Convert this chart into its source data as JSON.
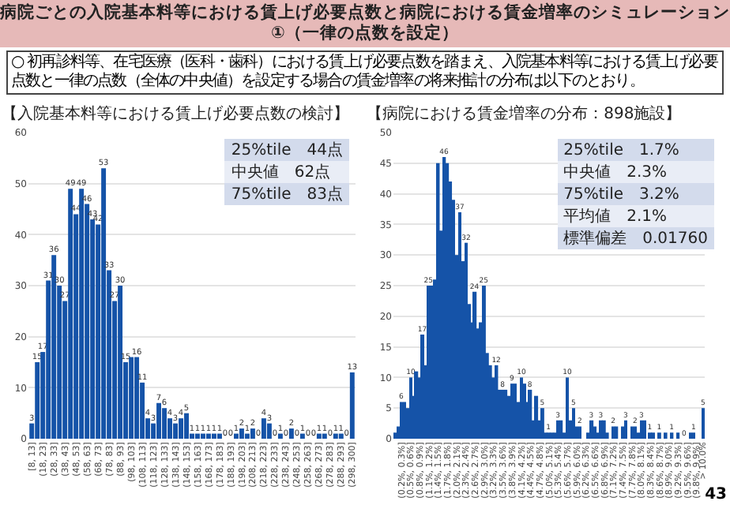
{
  "chart_data": [
    {
      "type": "bar",
      "title": "【入院基本料等における賃上げ必要点数の検討】",
      "annotations": [
        "病院ごとの入院基本料等における賃上げ必要点数と病院における賃金増率のシミュレーション ①（一律の点数を設定）",
        "○ 初再診料等、在宅医療（医科・歯科）における賃上げ必要点数を踏まえ、入院基本料等における賃上げ必要点数と一律の点数（全体の中央値）を設定する場合の賃金増率の将来推計の分布は以下のとおり。",
        "43",
        "25%tile　44点",
        "中央値　62点",
        "75%tile　83点"
      ],
      "categories": [
        "[8, 13]",
        null,
        "(18, 23]",
        null,
        "(28, 33]",
        null,
        "(38, 43]",
        null,
        "(48, 53]",
        null,
        "(58, 63]",
        null,
        "(68, 73]",
        null,
        "(78, 83]",
        null,
        "(88, 93]",
        null,
        "(98, 103]",
        null,
        "(108, 113]",
        null,
        "(118, 123]",
        null,
        "(128, 133]",
        null,
        "(138, 143]",
        null,
        "(148, 153]",
        null,
        "(158, 163]",
        null,
        "(168, 173]",
        null,
        "(178, 183]",
        null,
        "(188, 193]",
        null,
        "(198, 203]",
        null,
        "(208, 213]",
        null,
        "(218, 223]",
        null,
        "(228, 233]",
        null,
        "(238, 243]",
        null,
        "(248, 253]",
        null,
        "(258, 263]",
        null,
        "(268, 273]",
        null,
        "(278, 283]",
        null,
        "(288, 293]",
        null,
        "(298, 300]"
      ],
      "values": [
        3,
        15,
        17,
        31,
        36,
        30,
        27,
        49,
        44,
        49,
        46,
        43,
        42,
        53,
        33,
        27,
        30,
        15,
        16,
        16,
        11,
        4,
        3,
        7,
        6,
        4,
        3,
        4,
        5,
        1,
        1,
        1,
        1,
        1,
        1,
        0,
        0,
        1,
        2,
        1,
        2,
        0,
        4,
        3,
        0,
        1,
        0,
        2,
        0,
        1,
        0,
        0,
        1,
        1,
        0,
        1,
        1,
        0,
        13
      ],
      "value_labels": [
        "3",
        "15",
        "17",
        "31",
        "36",
        "30",
        "27",
        "49",
        "44",
        "49",
        "46",
        "43",
        "42",
        "53",
        "33",
        "27",
        "30",
        "15",
        null,
        "16",
        "11",
        "4",
        "3",
        "7",
        "6",
        "4",
        "3",
        "4",
        "5",
        "1",
        "1",
        "1",
        "1",
        "1",
        "1",
        "0",
        "0",
        "1",
        "2",
        "1",
        "2",
        "0",
        "4",
        "3",
        "0",
        "1",
        "0",
        "2",
        "0",
        "1",
        "0",
        "0",
        "1",
        "1",
        "0",
        "1",
        "1",
        "0",
        "13"
      ],
      "color": "#1553a8",
      "ylim": [
        0,
        60
      ],
      "yticks": [
        0,
        10,
        20,
        30,
        40,
        50,
        60
      ],
      "grid": "y"
    },
    {
      "type": "bar",
      "title": "【病院における賃金増率の分布：898施設】",
      "annotations": [
        "25%tile　1.7%",
        "中央値　2.3%",
        "75%tile　3.2%",
        "平均値　2.1%",
        "標準偏差　0.01760"
      ],
      "categories": [
        null,
        null,
        "(0.2%, 0.3%]",
        null,
        null,
        "(0.5%, 0.6%]",
        null,
        null,
        "(0.8%, 0.9%]",
        null,
        null,
        "(1.1%, 1.2%]",
        null,
        null,
        "(1.4%, 1.5%]",
        null,
        null,
        "(1.7%, 1.8%]",
        null,
        null,
        "(2.0%, 2.1%]",
        null,
        null,
        "(2.3%, 2.4%]",
        null,
        null,
        "(2.6%, 2.7%]",
        null,
        null,
        "(2.9%, 3.0%]",
        null,
        null,
        "(3.2%, 3.3%]",
        null,
        null,
        "(3.5%, 3.6%]",
        null,
        null,
        "(3.8%, 3.9%]",
        null,
        null,
        "(4.1%, 4.2%]",
        null,
        null,
        "(4.4%, 4.5%]",
        null,
        null,
        "(4.7%, 4.8%]",
        null,
        null,
        "(5.0%, 5.1%]",
        null,
        null,
        "(5.3%, 5.4%]",
        null,
        null,
        "(5.6%, 5.7%]",
        null,
        null,
        "(5.9%, 6.0%]",
        null,
        null,
        "(6.2%, 6.3%]",
        null,
        null,
        "(6.5%, 6.6%]",
        null,
        null,
        "(6.8%, 6.9%]",
        null,
        null,
        "(7.1%, 7.2%]",
        null,
        null,
        "(7.4%, 7.5%]",
        null,
        null,
        "(7.7%, 7.8%]",
        null,
        null,
        "(8.0%, 8.1%]",
        null,
        null,
        "(8.3%, 8.4%]",
        null,
        null,
        "(8.6%, 8.7%]",
        null,
        null,
        "(8.9%, 9.0%]",
        null,
        null,
        "(9.2%, 9.3%]",
        null,
        null,
        "(9.5%, 9.6%]",
        null,
        null,
        "(9.8%, 9.9%]",
        null,
        "> 10.0%"
      ],
      "values": [
        1,
        2,
        6,
        6,
        5,
        10,
        7,
        11,
        10,
        17,
        12,
        25,
        25,
        26,
        45,
        34,
        46,
        45,
        42,
        39,
        30,
        37,
        29,
        32,
        22,
        19,
        24,
        18,
        19,
        25,
        14,
        12,
        10,
        12,
        8,
        8,
        8,
        7,
        9,
        9,
        6,
        10,
        9,
        6,
        8,
        3,
        7,
        3,
        5,
        1,
        1,
        1,
        1,
        3,
        3,
        1,
        10,
        3,
        5,
        2,
        2,
        0,
        0,
        1,
        3,
        2,
        1,
        3,
        3,
        1,
        0,
        2,
        2,
        0,
        2,
        3,
        0,
        2,
        2,
        1,
        3,
        3,
        0,
        1,
        1,
        0,
        1,
        0,
        1,
        0,
        1,
        0,
        1,
        0,
        0,
        0,
        1,
        1,
        0,
        0,
        5
      ],
      "value_labels": [
        null,
        null,
        "6",
        null,
        null,
        "10",
        null,
        null,
        null,
        "17",
        null,
        "25",
        null,
        null,
        null,
        null,
        "46",
        null,
        null,
        null,
        null,
        "37",
        null,
        "32",
        null,
        null,
        "24",
        null,
        null,
        "25",
        null,
        null,
        null,
        "12",
        null,
        "8",
        null,
        null,
        "9",
        null,
        null,
        "10",
        null,
        null,
        "8",
        null,
        null,
        null,
        "5",
        null,
        "1",
        null,
        null,
        "3",
        null,
        null,
        "10",
        null,
        "5",
        null,
        "2",
        null,
        null,
        null,
        "3",
        null,
        null,
        "3",
        null,
        null,
        null,
        "2",
        null,
        null,
        null,
        "3",
        null,
        null,
        "2",
        null,
        "3",
        null,
        null,
        "1",
        null,
        null,
        "1",
        null,
        null,
        null,
        "1",
        null,
        null,
        null,
        "0",
        null,
        null,
        "1",
        null,
        null,
        "5"
      ],
      "color": "#1553a8",
      "ylim": [
        0,
        50
      ],
      "yticks": [
        0,
        5,
        10,
        15,
        20,
        25,
        30,
        35,
        40,
        45,
        50
      ],
      "grid": "y"
    }
  ]
}
